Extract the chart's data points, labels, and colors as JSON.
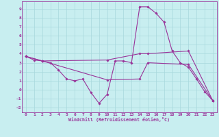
{
  "background_color": "#c8eef0",
  "grid_color": "#a8d8dc",
  "line_color": "#993399",
  "xlabel": "Windchill (Refroidissement éolien,°C)",
  "xlim": [
    -0.5,
    23.5
  ],
  "ylim": [
    -2.5,
    9.8
  ],
  "xticks": [
    0,
    1,
    2,
    3,
    4,
    5,
    6,
    7,
    8,
    9,
    10,
    11,
    12,
    13,
    14,
    15,
    16,
    17,
    18,
    19,
    20,
    21,
    22,
    23
  ],
  "yticks": [
    -2,
    -1,
    0,
    1,
    2,
    3,
    4,
    5,
    6,
    7,
    8,
    9
  ],
  "line1_x": [
    0,
    1,
    2,
    3,
    4,
    5,
    6,
    7,
    8,
    9,
    10,
    11,
    12,
    13,
    14,
    15,
    16,
    17,
    18,
    19,
    20,
    21,
    22,
    23
  ],
  "line1_y": [
    3.7,
    3.3,
    3.2,
    3.0,
    2.2,
    1.2,
    1.0,
    1.2,
    -0.3,
    -1.5,
    -0.5,
    3.2,
    3.2,
    3.0,
    9.2,
    9.2,
    8.5,
    7.5,
    4.3,
    3.0,
    2.5,
    1.2,
    -0.2,
    -1.2
  ],
  "line2_x": [
    0,
    2,
    10,
    14,
    15,
    20,
    23
  ],
  "line2_y": [
    3.7,
    3.2,
    3.3,
    4.0,
    4.0,
    4.3,
    -1.2
  ],
  "line3_x": [
    0,
    2,
    10,
    14,
    15,
    20,
    23
  ],
  "line3_y": [
    3.7,
    3.2,
    1.1,
    1.2,
    3.0,
    2.8,
    -1.2
  ]
}
